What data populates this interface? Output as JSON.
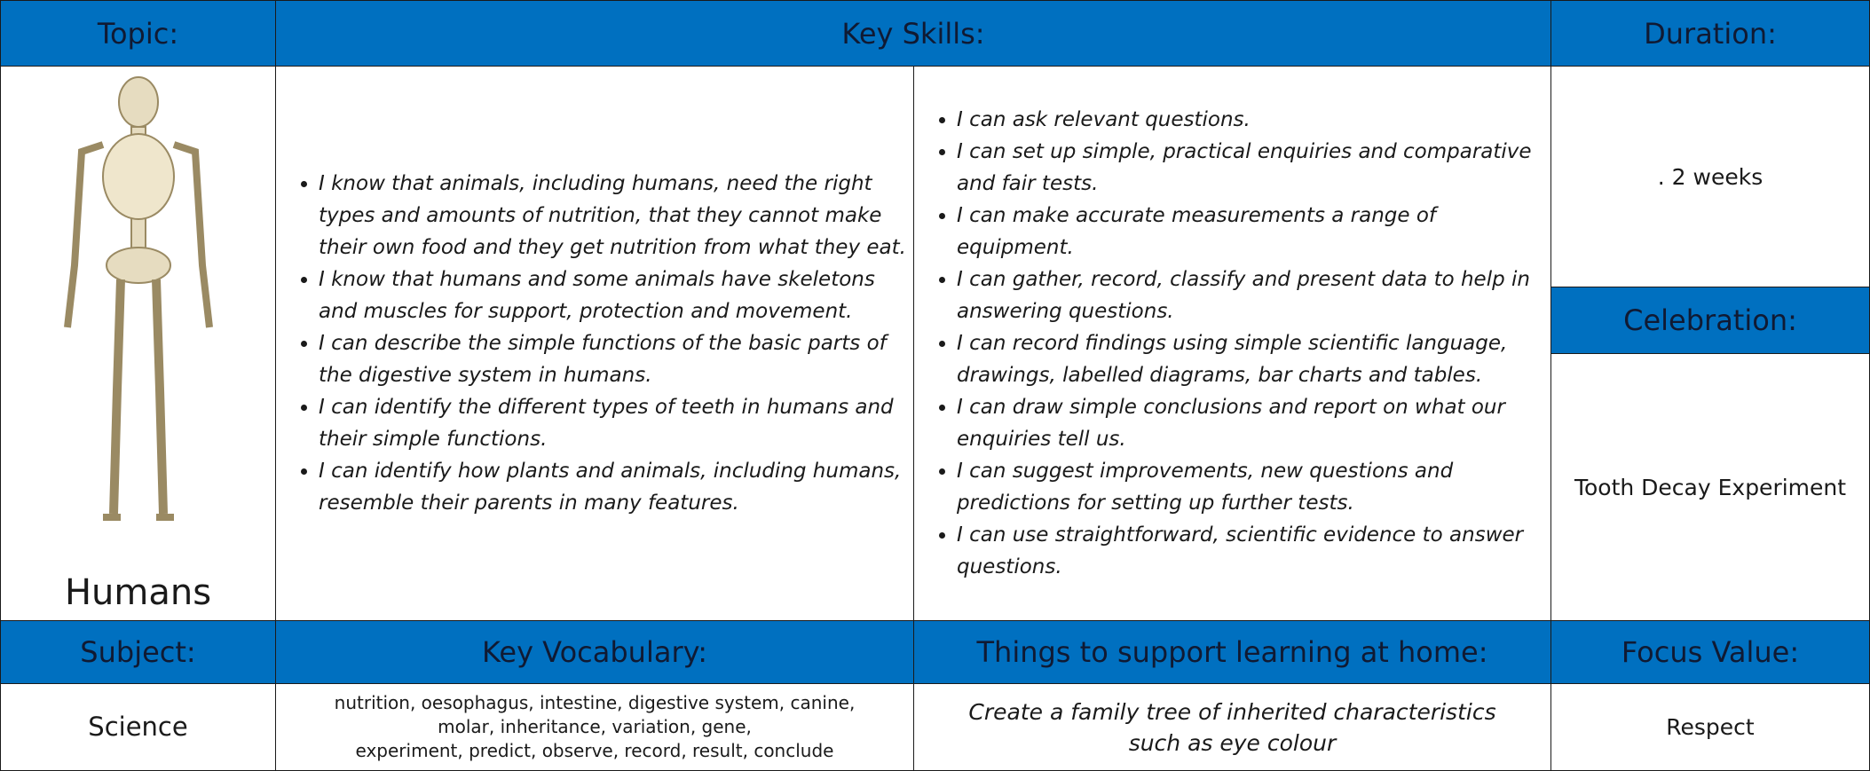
{
  "headers": {
    "topic": "Topic:",
    "key_skills": "Key Skills:",
    "duration": "Duration:",
    "celebration": "Celebration:",
    "subject": "Subject:",
    "key_vocabulary": "Key Vocabulary:",
    "home": "Things to support learning at home:",
    "focus_value": "Focus Value:"
  },
  "topic": "Humans",
  "key_skills_left": [
    "I know that animals, including humans, need the right types and amounts of nutrition, that they cannot make their own food and they get nutrition from what they eat.",
    "I know that humans and some animals have skeletons and muscles for support, protection and movement.",
    "I can describe the simple functions of the basic parts of the digestive system in humans.",
    "I can identify the different types of teeth in humans and their simple functions.",
    "I can identify how plants and animals, including humans, resemble their parents in many features."
  ],
  "key_skills_right": [
    "I can ask relevant questions.",
    "I can set up simple, practical enquiries and comparative and fair tests.",
    "I can make accurate measurements a range of equipment.",
    "I can gather, record, classify and present data to help in answering questions.",
    "I can record findings using simple scientific language, drawings, labelled diagrams, bar charts and tables.",
    "I can draw simple conclusions and report on what our enquiries tell us.",
    "I can suggest improvements, new questions and predictions for setting up further tests.",
    "I can use straightforward, scientific evidence to answer questions."
  ],
  "duration": ". 2 weeks",
  "celebration": "Tooth Decay Experiment",
  "subject": "Science",
  "key_vocabulary": [
    "nutrition, oesophagus, intestine, digestive system, canine,",
    "molar, inheritance, variation, gene,",
    "experiment, predict, observe, record, result, conclude"
  ],
  "home": "Create a family tree of inherited characteristics such as eye colour",
  "focus_value": "Respect"
}
